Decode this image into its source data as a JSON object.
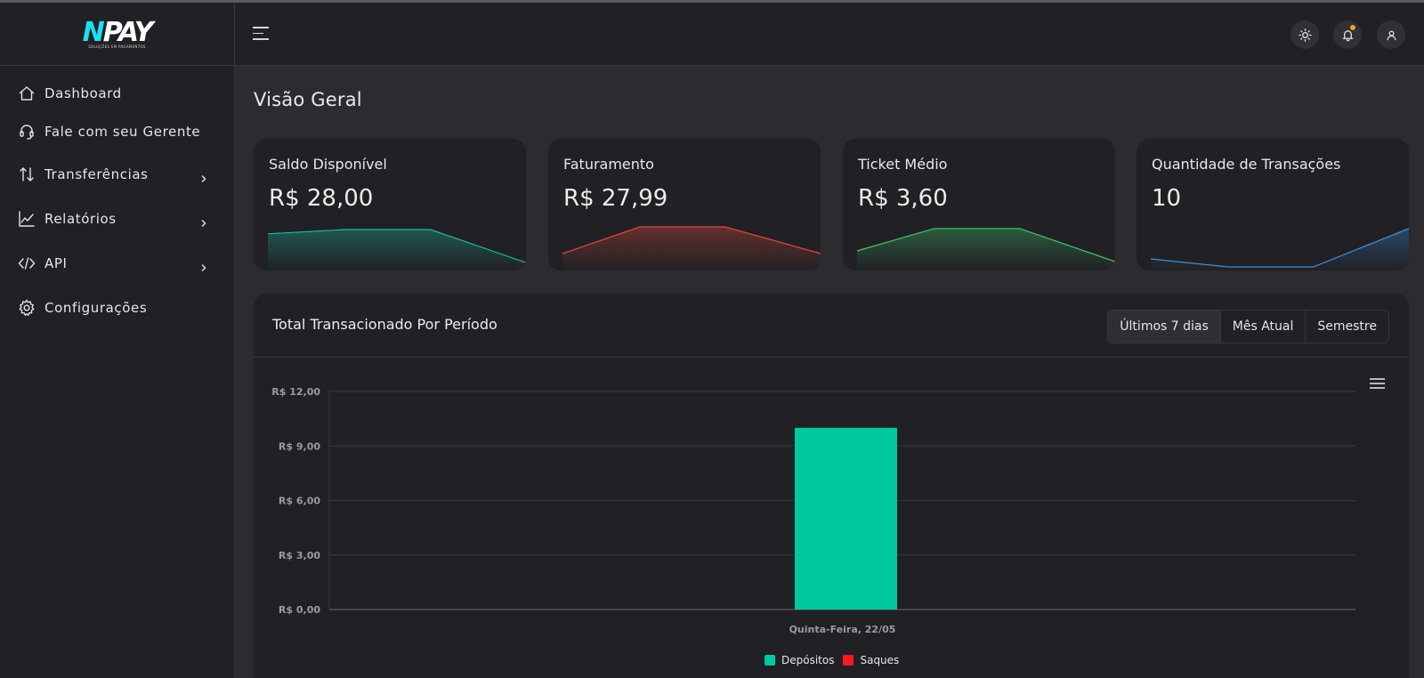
{
  "brand": {
    "mark_part1": "N",
    "mark_part2": "PAY",
    "tagline": "SOLUÇÕES EM PAGAMENTOS"
  },
  "sidebar": {
    "items": [
      {
        "label": "Dashboard",
        "icon": "home-icon",
        "has_submenu": false
      },
      {
        "label": "Fale com seu Gerente",
        "icon": "headset-icon",
        "has_submenu": false
      },
      {
        "label": "Transferências",
        "icon": "transfer-arrows-icon",
        "has_submenu": true
      },
      {
        "label": "Relatórios",
        "icon": "line-chart-icon",
        "has_submenu": true
      },
      {
        "label": "API",
        "icon": "code-icon",
        "has_submenu": true
      },
      {
        "label": "Configurações",
        "icon": "gear-icon",
        "has_submenu": false
      }
    ]
  },
  "header": {
    "icons": [
      "menu-icon",
      "sun-icon",
      "bell-icon",
      "user-icon"
    ]
  },
  "main": {
    "title": "Visão Geral",
    "cards": [
      {
        "label": "Saldo Disponível",
        "value": "R$ 28,00",
        "color": "#1abc9c",
        "spark": [
          0.62,
          0.7,
          0.7,
          0.08
        ]
      },
      {
        "label": "Faturamento",
        "value": "R$ 27,99",
        "color": "#e0493a",
        "spark": [
          0.25,
          0.75,
          0.75,
          0.25
        ]
      },
      {
        "label": "Ticket Médio",
        "value": "R$ 3,60",
        "color": "#3ec76a",
        "spark": [
          0.3,
          0.72,
          0.72,
          0.1
        ]
      },
      {
        "label": "Quantidade de Transações",
        "value": "10",
        "color": "#3b8fd9",
        "spark": [
          0.15,
          0.0,
          0.0,
          0.72
        ]
      }
    ],
    "chart_panel": {
      "title": "Total Transacionado Por Período",
      "tabs": [
        "Últimos 7 dias",
        "Mês Atual",
        "Semestre"
      ],
      "active_tab": "Últimos 7 dias"
    }
  },
  "chart_data": {
    "type": "bar",
    "categories": [
      "Quinta-Feira, 22/05"
    ],
    "series": [
      {
        "name": "Depósitos",
        "color": "#00c9a0",
        "values": [
          10
        ]
      },
      {
        "name": "Saques",
        "color": "#ff1a1a",
        "values": [
          0
        ]
      }
    ],
    "yticks": [
      "R$ 0,00",
      "R$ 3,00",
      "R$ 6,00",
      "R$ 9,00",
      "R$ 12,00"
    ],
    "ylim": [
      0,
      12
    ],
    "grid": true,
    "legend": "bottom-center"
  }
}
